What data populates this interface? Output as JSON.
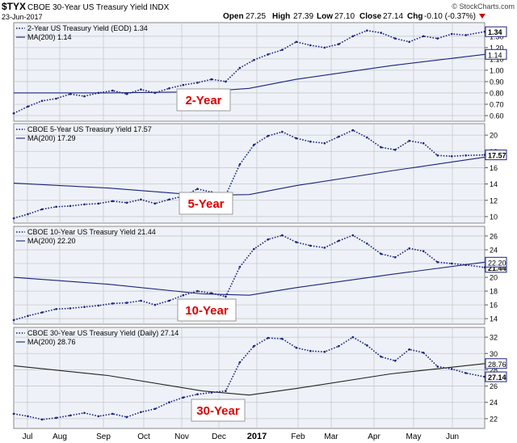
{
  "header": {
    "symbol": "$TYX",
    "name": "CBOE 30-Year US Treasury Yield INDX",
    "date": "23-Jun-2017",
    "brand": "© StockCharts.com",
    "quote": {
      "open_label": "Open",
      "open": "27.25",
      "high_label": "High",
      "high": "27.39",
      "low_label": "Low",
      "low": "27.10",
      "close_label": "Close",
      "close": "27.14",
      "chg_label": "Chg",
      "chg": "-0.10 (-0.37%)"
    },
    "chg_color": "#cc0000"
  },
  "colors": {
    "series": "#1a237e",
    "ma": "#1a237e",
    "ma30": "#222222",
    "grid": "#c8c8c8",
    "panel_bg": "#eef2f8",
    "label_red": "#dd0000"
  },
  "x_axis": {
    "labels": [
      "Jul",
      "Aug",
      "Sep",
      "Oct",
      "Nov",
      "Dec",
      "2017",
      "Feb",
      "Mar",
      "Apr",
      "May",
      "Jun"
    ],
    "bold_label": "2017"
  },
  "chart_data": [
    {
      "type": "line",
      "title": "2-Year US Treasury Yield (EOD) 1.34",
      "ma_legend": "MA(200) 1.14",
      "label": "2-Year",
      "last_value": "1.34",
      "ma_value": "1.14",
      "ylim": [
        0.55,
        1.42
      ],
      "yticks": [
        "1.40",
        "1.30",
        "1.20",
        "1.10",
        "1.00",
        "0.90",
        "0.80",
        "0.70",
        "0.60"
      ],
      "series": [
        {
          "name": "2-Year US Treasury Yield (EOD)",
          "x": [
            0,
            0.03,
            0.06,
            0.09,
            0.12,
            0.15,
            0.18,
            0.21,
            0.24,
            0.27,
            0.3,
            0.33,
            0.36,
            0.39,
            0.42,
            0.45,
            0.48,
            0.51,
            0.54,
            0.57,
            0.6,
            0.63,
            0.66,
            0.69,
            0.72,
            0.75,
            0.78,
            0.81,
            0.84,
            0.87,
            0.9,
            0.93,
            0.96,
            1.0
          ],
          "y": [
            0.62,
            0.68,
            0.73,
            0.75,
            0.79,
            0.77,
            0.8,
            0.82,
            0.79,
            0.83,
            0.8,
            0.84,
            0.87,
            0.89,
            0.92,
            0.9,
            1.02,
            1.09,
            1.14,
            1.18,
            1.25,
            1.22,
            1.2,
            1.23,
            1.3,
            1.35,
            1.33,
            1.28,
            1.25,
            1.3,
            1.28,
            1.32,
            1.31,
            1.34
          ]
        }
      ],
      "ma": {
        "x": [
          0,
          0.2,
          0.4,
          0.5,
          0.6,
          0.8,
          1.0
        ],
        "y": [
          0.8,
          0.8,
          0.81,
          0.84,
          0.92,
          1.04,
          1.14
        ]
      }
    },
    {
      "type": "line",
      "title": "CBOE 5-Year US Treasury Yield 17.57",
      "ma_legend": "MA(200) 17.29",
      "label": "5-Year",
      "last_value": "17.57",
      "ma_value": "",
      "ylim": [
        9.2,
        21.4
      ],
      "yticks": [
        "20",
        "18",
        "16",
        "14",
        "12",
        "10"
      ],
      "series": [
        {
          "name": "CBOE 5-Year US Treasury Yield",
          "x": [
            0,
            0.03,
            0.06,
            0.09,
            0.12,
            0.15,
            0.18,
            0.21,
            0.24,
            0.27,
            0.3,
            0.33,
            0.36,
            0.39,
            0.42,
            0.45,
            0.48,
            0.51,
            0.54,
            0.57,
            0.6,
            0.63,
            0.66,
            0.69,
            0.72,
            0.75,
            0.78,
            0.81,
            0.84,
            0.87,
            0.9,
            0.93,
            0.96,
            1.0
          ],
          "y": [
            9.8,
            10.3,
            10.9,
            11.2,
            11.3,
            11.5,
            11.6,
            11.9,
            11.7,
            12.1,
            11.6,
            12.1,
            12.5,
            13.4,
            13.0,
            12.6,
            16.4,
            18.8,
            19.9,
            20.4,
            19.6,
            19.2,
            19.0,
            19.8,
            20.6,
            19.7,
            18.5,
            18.2,
            19.3,
            19.0,
            17.5,
            17.4,
            17.5,
            17.57
          ]
        }
      ],
      "ma": {
        "x": [
          0,
          0.2,
          0.4,
          0.5,
          0.6,
          0.8,
          1.0
        ],
        "y": [
          14.1,
          13.5,
          12.6,
          12.7,
          13.8,
          15.6,
          17.29
        ]
      }
    },
    {
      "type": "line",
      "title": "CBOE 10-Year US Treasury Yield 21.44",
      "ma_legend": "MA(200) 22.20",
      "label": "10-Year",
      "last_value": "21.44",
      "ma_value": "22.20",
      "ylim": [
        13.2,
        27.4
      ],
      "yticks": [
        "26",
        "24",
        "22",
        "20",
        "18",
        "16",
        "14"
      ],
      "series": [
        {
          "name": "CBOE 10-Year US Treasury Yield",
          "x": [
            0,
            0.03,
            0.06,
            0.09,
            0.12,
            0.15,
            0.18,
            0.21,
            0.24,
            0.27,
            0.3,
            0.33,
            0.36,
            0.39,
            0.42,
            0.45,
            0.48,
            0.51,
            0.54,
            0.57,
            0.6,
            0.63,
            0.66,
            0.69,
            0.72,
            0.75,
            0.78,
            0.81,
            0.84,
            0.87,
            0.9,
            0.93,
            0.96,
            1.0
          ],
          "y": [
            13.8,
            14.4,
            14.9,
            15.4,
            15.5,
            15.7,
            15.9,
            16.2,
            16.3,
            16.6,
            16.0,
            16.6,
            17.4,
            18.0,
            17.7,
            17.2,
            21.5,
            24.1,
            25.5,
            26.1,
            25.1,
            24.6,
            24.3,
            25.3,
            26.1,
            24.9,
            23.4,
            22.9,
            24.2,
            23.8,
            22.2,
            22.0,
            21.8,
            21.44
          ]
        }
      ],
      "ma": {
        "x": [
          0,
          0.2,
          0.4,
          0.5,
          0.6,
          0.8,
          1.0
        ],
        "y": [
          20.0,
          19.0,
          17.6,
          17.4,
          18.5,
          20.4,
          22.2
        ]
      }
    },
    {
      "type": "line",
      "title": "CBOE 30-Year US Treasury Yield (Daily) 27.14",
      "ma_legend": "MA(200) 28.76",
      "label": "30-Year",
      "last_value": "27.14",
      "ma_value": "28.76",
      "ylim": [
        20.8,
        33.2
      ],
      "yticks": [
        "32",
        "30",
        "28",
        "26",
        "24",
        "22"
      ],
      "series": [
        {
          "name": "CBOE 30-Year US Treasury Yield (Daily)",
          "x": [
            0,
            0.03,
            0.06,
            0.09,
            0.12,
            0.15,
            0.18,
            0.21,
            0.24,
            0.27,
            0.3,
            0.33,
            0.36,
            0.39,
            0.42,
            0.45,
            0.48,
            0.51,
            0.54,
            0.57,
            0.6,
            0.63,
            0.66,
            0.69,
            0.72,
            0.75,
            0.78,
            0.81,
            0.84,
            0.87,
            0.9,
            0.93,
            0.96,
            1.0
          ],
          "y": [
            22.6,
            22.3,
            21.9,
            22.1,
            22.4,
            22.7,
            22.3,
            22.6,
            22.2,
            22.8,
            23.2,
            24.0,
            24.6,
            25.0,
            25.2,
            25.4,
            28.9,
            30.9,
            31.9,
            31.8,
            30.7,
            30.3,
            30.2,
            30.9,
            32.0,
            31.0,
            29.6,
            29.1,
            30.5,
            30.1,
            28.4,
            28.1,
            27.6,
            27.14
          ]
        }
      ],
      "ma": {
        "x": [
          0,
          0.2,
          0.4,
          0.5,
          0.6,
          0.8,
          1.0
        ],
        "y": [
          28.5,
          27.3,
          25.4,
          24.9,
          25.7,
          27.5,
          28.76
        ]
      }
    }
  ]
}
